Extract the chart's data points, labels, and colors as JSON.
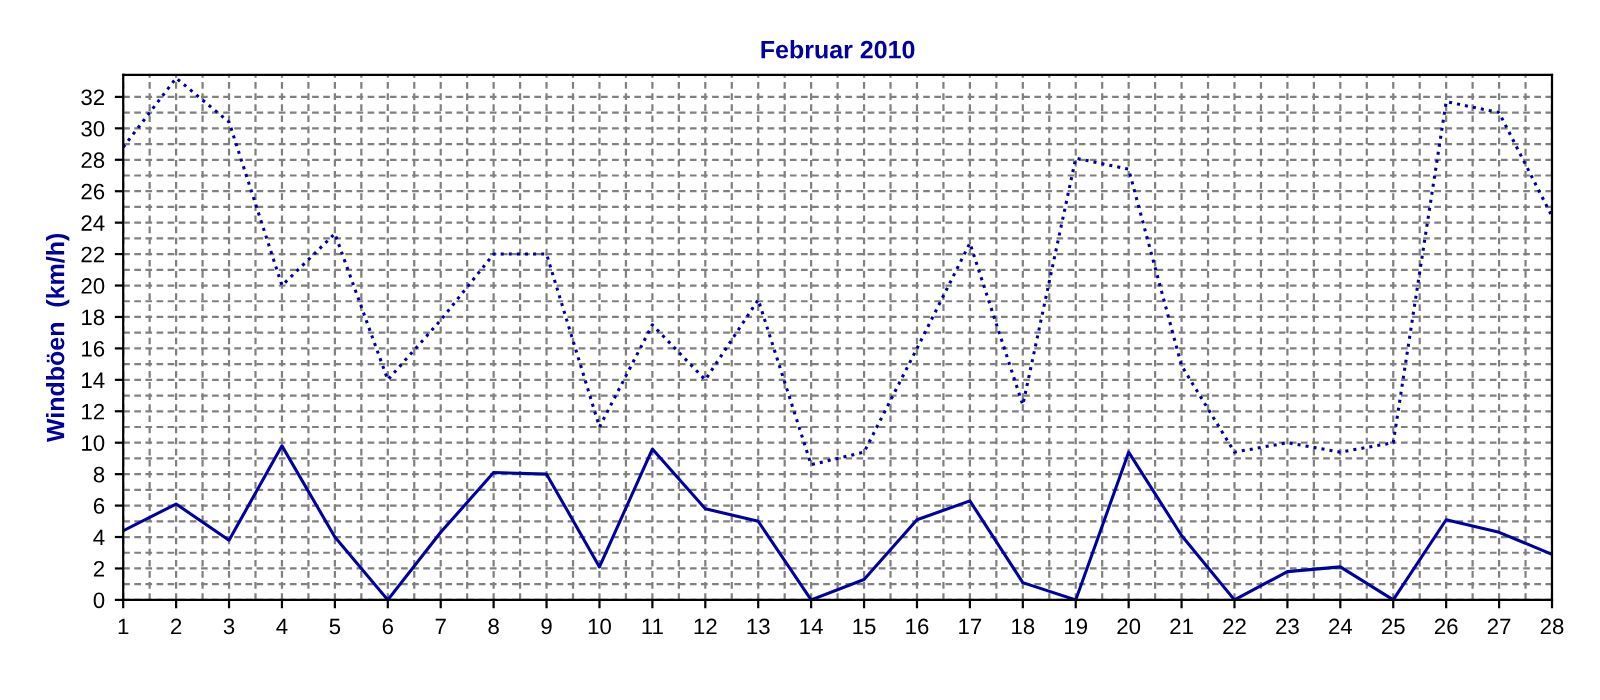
{
  "chart_data": {
    "type": "line",
    "title": "Februar 2010",
    "ylabel": "Windböen  (km/h)",
    "x": [
      1,
      2,
      3,
      4,
      5,
      6,
      7,
      8,
      9,
      10,
      11,
      12,
      13,
      14,
      15,
      16,
      17,
      18,
      19,
      20,
      21,
      22,
      23,
      24,
      25,
      26,
      27,
      28
    ],
    "series": [
      {
        "color": "#0000a0",
        "line_style": "dotted",
        "values": [
          28.8,
          33.2,
          30.4,
          20.0,
          23.3,
          14.0,
          17.8,
          22.0,
          22.0,
          11.0,
          17.5,
          14.0,
          19.1,
          8.6,
          9.4,
          16.0,
          22.7,
          12.4,
          28.1,
          27.4,
          14.9,
          9.4,
          10.0,
          9.4,
          10.0,
          31.7,
          31.0,
          24.4
        ]
      },
      {
        "color": "#0000a0",
        "line_style": "solid",
        "values": [
          4.4,
          6.1,
          3.8,
          9.8,
          4.0,
          0,
          4.3,
          8.1,
          8.0,
          2.1,
          9.6,
          5.8,
          5.0,
          0,
          1.3,
          5.1,
          6.3,
          1.1,
          0,
          9.4,
          4.1,
          0,
          1.8,
          2.1,
          0,
          5.1,
          4.3,
          2.9
        ]
      }
    ],
    "xlim": [
      1,
      28
    ],
    "xticks": [
      1,
      2,
      3,
      4,
      5,
      6,
      7,
      8,
      9,
      10,
      11,
      12,
      13,
      14,
      15,
      16,
      17,
      18,
      19,
      20,
      21,
      22,
      23,
      24,
      25,
      26,
      27,
      28
    ],
    "ylim": [
      0,
      33.4
    ],
    "yticks": [
      0,
      2,
      4,
      6,
      8,
      10,
      12,
      14,
      16,
      18,
      20,
      22,
      24,
      26,
      28,
      30,
      32
    ],
    "grid": true,
    "marker": "none"
  }
}
